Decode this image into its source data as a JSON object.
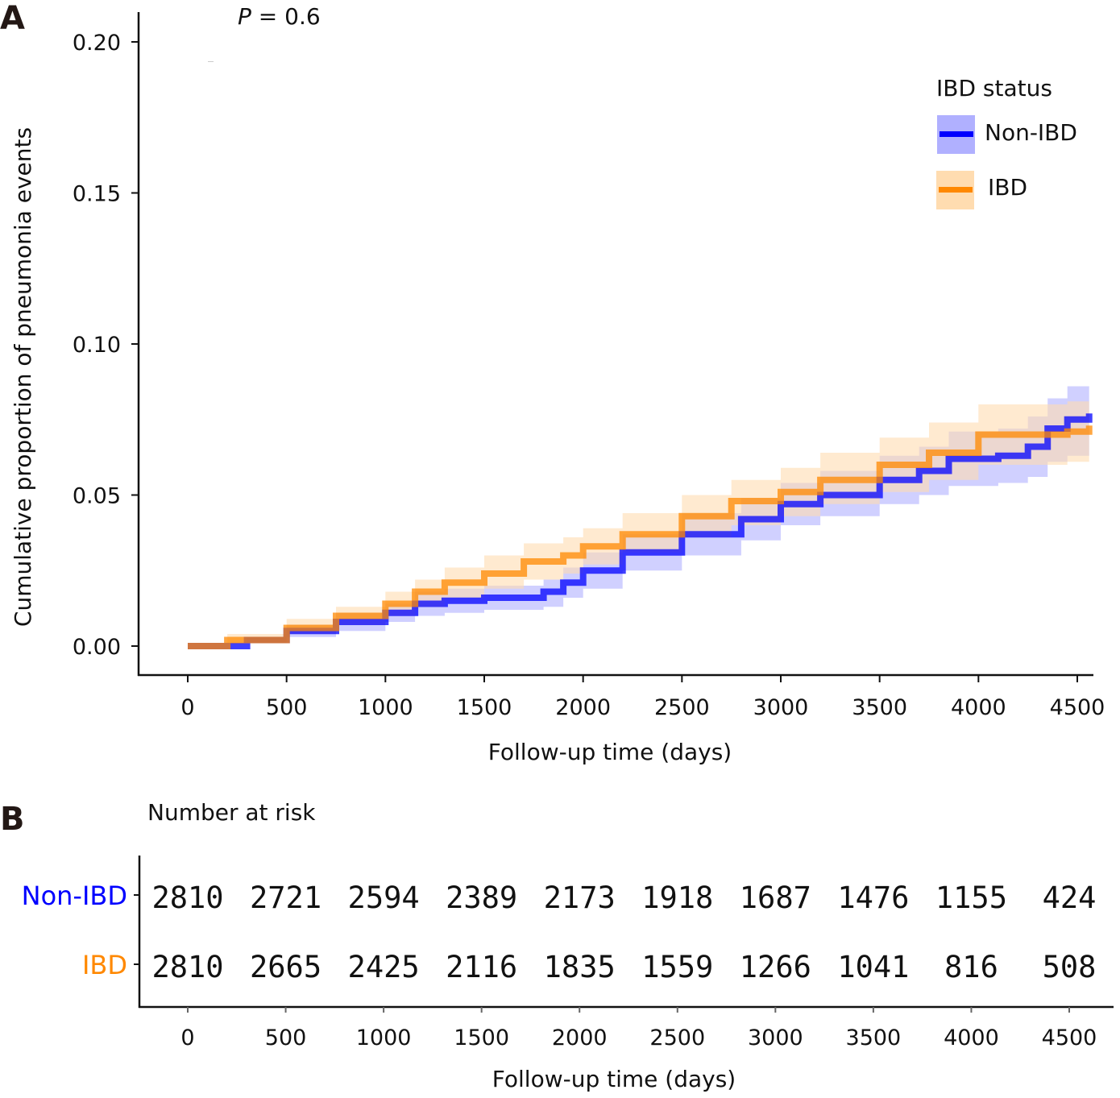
{
  "chart_data": [
    {
      "panel": "A",
      "type": "line",
      "subtype": "cumulative-incidence-step",
      "title": "",
      "annotation": {
        "italic": "P",
        "text": " = 0.6"
      },
      "xlabel": "Follow-up time (days)",
      "ylabel": "Cumulative proportion of pneumonia events",
      "xlim": [
        -50,
        4560
      ],
      "ylim": [
        0,
        0.2
      ],
      "xticks": [
        0,
        500,
        1000,
        1500,
        2000,
        2500,
        3000,
        3500,
        4000,
        4500
      ],
      "yticks": [
        0.0,
        0.05,
        0.1,
        0.15,
        0.2
      ],
      "ytick_labels": [
        "0.00",
        "0.05",
        "0.10",
        "0.15",
        "0.20"
      ],
      "grid": false,
      "legend": {
        "title": "IBD status",
        "placement": "top-right"
      },
      "series": [
        {
          "name": "Non-IBD",
          "color": "#0000ff",
          "band_color": "#b0b0ff",
          "x": [
            0,
            130,
            300,
            500,
            750,
            1000,
            1150,
            1300,
            1500,
            1800,
            1900,
            2000,
            2200,
            2500,
            2800,
            3000,
            3200,
            3500,
            3700,
            3850,
            4100,
            4250,
            4350,
            4450,
            4560
          ],
          "y": [
            0,
            0,
            0.002,
            0.005,
            0.008,
            0.011,
            0.014,
            0.015,
            0.016,
            0.018,
            0.021,
            0.025,
            0.031,
            0.037,
            0.042,
            0.047,
            0.05,
            0.055,
            0.058,
            0.062,
            0.063,
            0.066,
            0.072,
            0.075,
            0.077
          ],
          "lower": [
            0,
            0,
            0.001,
            0.003,
            0.005,
            0.008,
            0.01,
            0.011,
            0.012,
            0.013,
            0.016,
            0.019,
            0.025,
            0.03,
            0.035,
            0.04,
            0.043,
            0.047,
            0.05,
            0.053,
            0.054,
            0.056,
            0.061,
            0.063,
            0.065
          ],
          "upper": [
            0,
            0,
            0.003,
            0.007,
            0.011,
            0.014,
            0.018,
            0.019,
            0.02,
            0.022,
            0.026,
            0.031,
            0.037,
            0.044,
            0.049,
            0.054,
            0.058,
            0.063,
            0.066,
            0.071,
            0.072,
            0.076,
            0.082,
            0.086,
            0.089
          ]
        },
        {
          "name": "IBD",
          "color": "#ff8800",
          "band_color": "#ffdcb0",
          "x": [
            0,
            130,
            200,
            500,
            750,
            1000,
            1150,
            1300,
            1500,
            1700,
            1900,
            2000,
            2200,
            2500,
            2750,
            3000,
            3200,
            3500,
            3750,
            4000,
            4300,
            4450,
            4560
          ],
          "y": [
            0,
            0,
            0.002,
            0.006,
            0.01,
            0.014,
            0.018,
            0.021,
            0.024,
            0.028,
            0.03,
            0.033,
            0.037,
            0.043,
            0.048,
            0.051,
            0.055,
            0.06,
            0.064,
            0.07,
            0.07,
            0.071,
            0.073
          ],
          "lower": [
            0,
            0,
            0.001,
            0.004,
            0.007,
            0.01,
            0.013,
            0.016,
            0.019,
            0.022,
            0.024,
            0.027,
            0.031,
            0.036,
            0.04,
            0.043,
            0.047,
            0.051,
            0.055,
            0.06,
            0.06,
            0.061,
            0.062
          ],
          "upper": [
            0,
            0,
            0.004,
            0.009,
            0.013,
            0.018,
            0.022,
            0.026,
            0.03,
            0.034,
            0.036,
            0.039,
            0.044,
            0.05,
            0.055,
            0.059,
            0.064,
            0.069,
            0.074,
            0.08,
            0.08,
            0.081,
            0.084
          ]
        }
      ]
    },
    {
      "panel": "B",
      "type": "table",
      "title": "Number at risk",
      "xlabel": "Follow-up time (days)",
      "columns": [
        0,
        500,
        1000,
        1500,
        2000,
        2500,
        3000,
        3500,
        4000,
        4500
      ],
      "rows": [
        {
          "group": "Non-IBD",
          "color": "#0000ff",
          "values": [
            2810,
            2721,
            2594,
            2389,
            2173,
            1918,
            1687,
            1476,
            1155,
            424
          ]
        },
        {
          "group": "IBD",
          "color": "#ff8800",
          "values": [
            2810,
            2665,
            2425,
            2116,
            1835,
            1559,
            1266,
            1041,
            816,
            508
          ]
        }
      ]
    }
  ],
  "labels": {
    "panel_a": "A",
    "panel_b": "B",
    "p_italic": "P",
    "p_value_text": " = 0.6",
    "legend_title": "IBD status",
    "legend_non_ibd": "Non-IBD",
    "legend_ibd": "IBD",
    "risk_title": "Number at risk",
    "risk_group_non_ibd": "Non-IBD",
    "risk_group_ibd": "IBD",
    "xlabel_a": "Follow-up time (days)",
    "xlabel_b": "Follow-up time (days)",
    "ylabel_a": "Cumulative proportion of pneumonia events"
  }
}
